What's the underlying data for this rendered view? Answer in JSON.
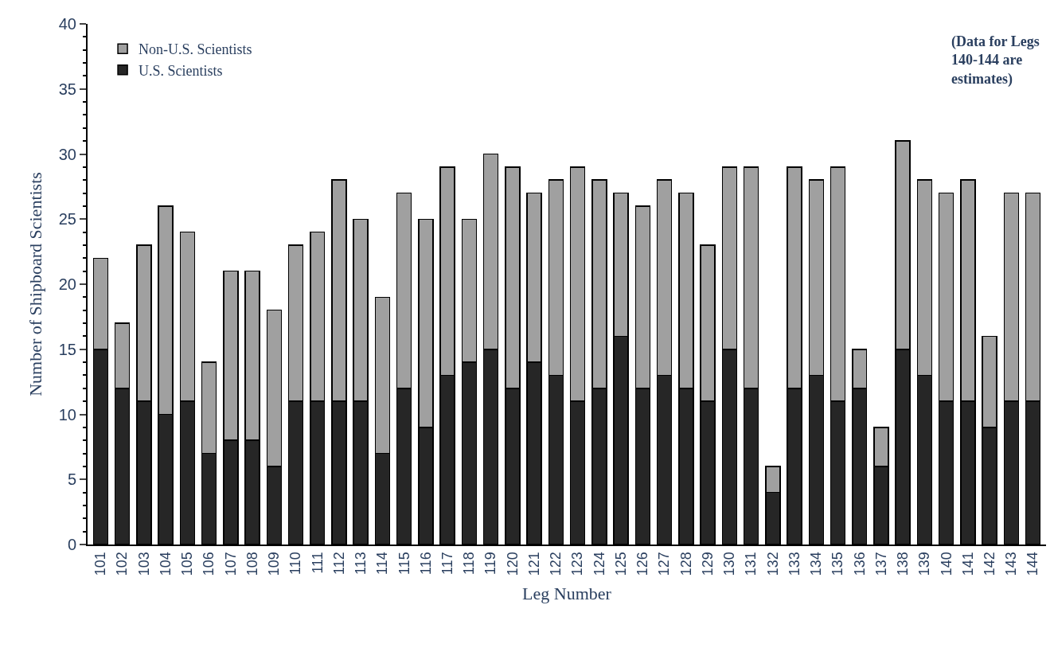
{
  "chart_data": {
    "type": "bar",
    "stacked": true,
    "xlabel": "Leg Number",
    "ylabel": "Number of Shipboard Scientists",
    "categories": [
      "101",
      "102",
      "103",
      "104",
      "105",
      "106",
      "107",
      "108",
      "109",
      "110",
      "111",
      "112",
      "113",
      "114",
      "115",
      "116",
      "117",
      "118",
      "119",
      "120",
      "121",
      "122",
      "123",
      "124",
      "125",
      "126",
      "127",
      "128",
      "129",
      "130",
      "131",
      "132",
      "133",
      "134",
      "135",
      "136",
      "137",
      "138",
      "139",
      "140",
      "141",
      "142",
      "143",
      "144"
    ],
    "series": [
      {
        "name": "U.S. Scientists",
        "color": "#262626",
        "values": [
          15,
          12,
          11,
          10,
          11,
          7,
          8,
          8,
          6,
          11,
          11,
          11,
          11,
          7,
          12,
          9,
          13,
          14,
          15,
          12,
          14,
          13,
          11,
          12,
          16,
          12,
          13,
          12,
          11,
          15,
          12,
          4,
          12,
          13,
          11,
          12,
          6,
          15,
          13,
          11,
          11,
          9,
          11,
          11
        ]
      },
      {
        "name": "Non-U.S. Scientists",
        "color": "#a0a0a0",
        "values": [
          7,
          5,
          12,
          16,
          13,
          7,
          13,
          13,
          12,
          12,
          13,
          17,
          14,
          12,
          15,
          16,
          16,
          11,
          15,
          17,
          13,
          15,
          18,
          16,
          11,
          14,
          15,
          15,
          12,
          14,
          17,
          2,
          17,
          15,
          18,
          3,
          3,
          16,
          15,
          16,
          17,
          7,
          16,
          16
        ]
      }
    ],
    "ylim": [
      0,
      40
    ],
    "yticks": [
      0,
      5,
      10,
      15,
      20,
      25,
      30,
      35,
      40
    ],
    "legend": "top left",
    "annotations": [
      "(Data for Legs 140-144 are estimates)"
    ]
  }
}
